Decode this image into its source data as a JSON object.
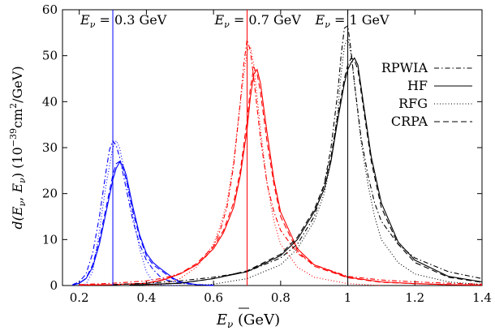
{
  "chart_data": {
    "type": "line",
    "title": "",
    "xlabel_main": "E",
    "xlabel_unit": " (GeV)",
    "ylabel_lead": "d(E",
    "ylabel_sep": ", ",
    "ylabel_close": ")  (10",
    "ylabel_exp": "−39",
    "ylabel_unit": "cm",
    "ylabel_unit2": "2",
    "ylabel_tail": "/GeV)",
    "nu": "ν",
    "xlim": [
      0.15,
      1.4
    ],
    "ylim": [
      0,
      60
    ],
    "xticks": [
      "0.2",
      "0.4",
      "0.6",
      "0.8",
      "1",
      "1.2",
      "1.4"
    ],
    "yticks": [
      "0",
      "10",
      "20",
      "30",
      "40",
      "50",
      "60"
    ],
    "legend_position": "right",
    "legend": [
      {
        "label": "RPWIA",
        "style": "dash-dot"
      },
      {
        "label": "HF",
        "style": "solid"
      },
      {
        "label": "RFG",
        "style": "dotted"
      },
      {
        "label": "CRPA",
        "style": "dashed"
      }
    ],
    "energies": [
      {
        "label_prefix": "E",
        "label_value": " = 0.3 GeV",
        "value": 0.3,
        "color": "#0000ff"
      },
      {
        "label_prefix": "E",
        "label_value": " = 0.7 GeV",
        "value": 0.7,
        "color": "#ff0000"
      },
      {
        "label_prefix": "E",
        "label_value": " = 1 GeV",
        "value": 1.0,
        "color": "#000000"
      }
    ],
    "groups": [
      {
        "energy": 0.3,
        "color": "#0000ff",
        "series": [
          {
            "name": "RPWIA",
            "x": [
              0.18,
              0.2,
              0.22,
              0.24,
              0.26,
              0.28,
              0.29,
              0.3,
              0.31,
              0.32,
              0.34,
              0.36,
              0.38,
              0.4,
              0.42,
              0.44,
              0.46,
              0.5,
              0.55,
              0.6
            ],
            "y": [
              0.2,
              0.8,
              2.5,
              7,
              15,
              25,
              29.5,
              31.5,
              30.5,
              28,
              21,
              14,
              9,
              5.5,
              3.5,
              2,
              1.2,
              0.5,
              0.2,
              0.1
            ]
          },
          {
            "name": "RFG",
            "x": [
              0.2,
              0.22,
              0.24,
              0.26,
              0.28,
              0.3,
              0.31,
              0.32,
              0.34,
              0.36,
              0.38,
              0.4,
              0.42,
              0.44,
              0.46,
              0.48,
              0.5
            ],
            "y": [
              0,
              0.3,
              3,
              12,
              22,
              30,
              31.5,
              30,
              23,
              15,
              8,
              3,
              0.8,
              0.2,
              0,
              0,
              0
            ]
          },
          {
            "name": "HF",
            "x": [
              0.18,
              0.2,
              0.22,
              0.24,
              0.26,
              0.28,
              0.3,
              0.31,
              0.32,
              0.33,
              0.34,
              0.36,
              0.38,
              0.4,
              0.42,
              0.44,
              0.46,
              0.48,
              0.5,
              0.55,
              0.6
            ],
            "y": [
              0.1,
              0.5,
              1.5,
              4,
              9,
              16,
              23,
              25.5,
              26.8,
              26.2,
              24,
              17,
              11,
              7,
              5,
              3.8,
              2.7,
              1.6,
              0.8,
              0.2,
              0
            ]
          },
          {
            "name": "CRPA",
            "x": [
              0.18,
              0.2,
              0.22,
              0.24,
              0.26,
              0.28,
              0.3,
              0.31,
              0.32,
              0.33,
              0.34,
              0.36,
              0.38,
              0.4,
              0.42,
              0.44,
              0.46,
              0.48,
              0.5,
              0.55,
              0.6
            ],
            "y": [
              0.1,
              0.5,
              1.6,
              4.5,
              10,
              17,
              24,
              26.5,
              27,
              25.5,
              23,
              16,
              10.5,
              6.5,
              4.5,
              3.5,
              2.4,
              1.4,
              0.7,
              0.2,
              0
            ]
          }
        ]
      },
      {
        "energy": 0.7,
        "color": "#ff0000",
        "series": [
          {
            "name": "RPWIA",
            "x": [
              0.2,
              0.3,
              0.4,
              0.45,
              0.5,
              0.55,
              0.58,
              0.6,
              0.62,
              0.64,
              0.66,
              0.68,
              0.69,
              0.7,
              0.71,
              0.72,
              0.74,
              0.76,
              0.78,
              0.8,
              0.85,
              0.9,
              1.0,
              1.1,
              1.2,
              1.3,
              1.4
            ],
            "y": [
              0.2,
              0.5,
              1,
              1.6,
              2.6,
              4.5,
              6.5,
              8.5,
              12,
              17,
              26,
              40,
              48,
              53.5,
              51,
              45,
              32,
              22,
              16,
              12,
              7,
              4.5,
              2,
              1.2,
              0.8,
              0.5,
              0.3
            ]
          },
          {
            "name": "RFG",
            "x": [
              0.4,
              0.45,
              0.5,
              0.55,
              0.6,
              0.62,
              0.64,
              0.66,
              0.68,
              0.7,
              0.71,
              0.72,
              0.74,
              0.76,
              0.78,
              0.8,
              0.85,
              0.9,
              1.0,
              1.1
            ],
            "y": [
              0,
              0.3,
              1.5,
              4,
              9,
              13,
              18,
              27,
              40,
              51,
              52,
              48,
              34,
              22,
              14,
              9,
              4,
              1.8,
              0.4,
              0
            ]
          },
          {
            "name": "HF",
            "x": [
              0.2,
              0.3,
              0.4,
              0.45,
              0.5,
              0.55,
              0.6,
              0.63,
              0.66,
              0.68,
              0.7,
              0.71,
              0.72,
              0.73,
              0.74,
              0.76,
              0.78,
              0.8,
              0.85,
              0.9,
              1.0,
              1.1,
              1.2,
              1.3,
              1.4
            ],
            "y": [
              0.1,
              0.2,
              0.5,
              1.2,
              2.5,
              4.5,
              8,
              11.5,
              17,
              24,
              34,
              41,
              46,
              47,
              44,
              33,
              23,
              16,
              8,
              4.5,
              1.8,
              0.8,
              0.4,
              0.2,
              0.1
            ]
          },
          {
            "name": "CRPA",
            "x": [
              0.2,
              0.3,
              0.4,
              0.45,
              0.5,
              0.55,
              0.6,
              0.63,
              0.66,
              0.68,
              0.7,
              0.71,
              0.72,
              0.73,
              0.74,
              0.76,
              0.78,
              0.8,
              0.85,
              0.9,
              1.0,
              1.1,
              1.2,
              1.3,
              1.4
            ],
            "y": [
              0.1,
              0.2,
              0.5,
              1.3,
              2.6,
              4.8,
              8.5,
              12,
              18,
              25,
              36,
              43,
              47.5,
              46,
              42,
              31,
              22,
              15,
              7.5,
              4.2,
              1.7,
              0.7,
              0.4,
              0.2,
              0.1
            ]
          }
        ]
      },
      {
        "energy": 1.0,
        "color": "#000000",
        "series": [
          {
            "name": "RPWIA",
            "x": [
              0.3,
              0.4,
              0.5,
              0.6,
              0.7,
              0.8,
              0.85,
              0.9,
              0.93,
              0.95,
              0.97,
              0.98,
              0.99,
              1.0,
              1.01,
              1.02,
              1.04,
              1.06,
              1.08,
              1.1,
              1.15,
              1.2,
              1.3,
              1.4
            ],
            "y": [
              0.2,
              0.5,
              1,
              1.8,
              3,
              6,
              9,
              15,
              22,
              30,
              42,
              50,
              56,
              56.5,
              51,
              44,
              32,
              24,
              18,
              14,
              9,
              6,
              3,
              1.5
            ]
          },
          {
            "name": "RFG",
            "x": [
              0.55,
              0.6,
              0.7,
              0.8,
              0.85,
              0.9,
              0.93,
              0.95,
              0.97,
              0.98,
              0.99,
              1.0,
              1.01,
              1.02,
              1.04,
              1.06,
              1.08,
              1.1,
              1.15,
              1.2,
              1.3,
              1.4
            ],
            "y": [
              0,
              0.3,
              1.5,
              4.5,
              8,
              14,
              20,
              27,
              38,
              46,
              52,
              54,
              50,
              44,
              31,
              22,
              15,
              10,
              5,
              2.5,
              0.8,
              0.2
            ]
          },
          {
            "name": "HF",
            "x": [
              0.35,
              0.5,
              0.6,
              0.7,
              0.8,
              0.85,
              0.9,
              0.93,
              0.95,
              0.97,
              0.99,
              1.0,
              1.01,
              1.02,
              1.03,
              1.05,
              1.07,
              1.1,
              1.15,
              1.2,
              1.3,
              1.4
            ],
            "y": [
              0.1,
              0.5,
              1.5,
              3,
              6.5,
              10,
              16,
              21,
              27,
              36,
              44,
              47,
              48.5,
              49.5,
              48,
              38,
              28,
              18,
              9.5,
              5.5,
              2,
              0.8
            ]
          },
          {
            "name": "CRPA",
            "x": [
              0.35,
              0.5,
              0.6,
              0.7,
              0.8,
              0.85,
              0.9,
              0.93,
              0.95,
              0.97,
              0.99,
              1.0,
              1.01,
              1.02,
              1.03,
              1.05,
              1.07,
              1.1,
              1.15,
              1.2,
              1.3,
              1.4
            ],
            "y": [
              0.1,
              0.5,
              1.5,
              3.2,
              6.8,
              10.5,
              16.5,
              22,
              28,
              37,
              45,
              48,
              49.5,
              49,
              47,
              37,
              27,
              17,
              9,
              5,
              1.8,
              0.7
            ]
          }
        ]
      }
    ]
  }
}
